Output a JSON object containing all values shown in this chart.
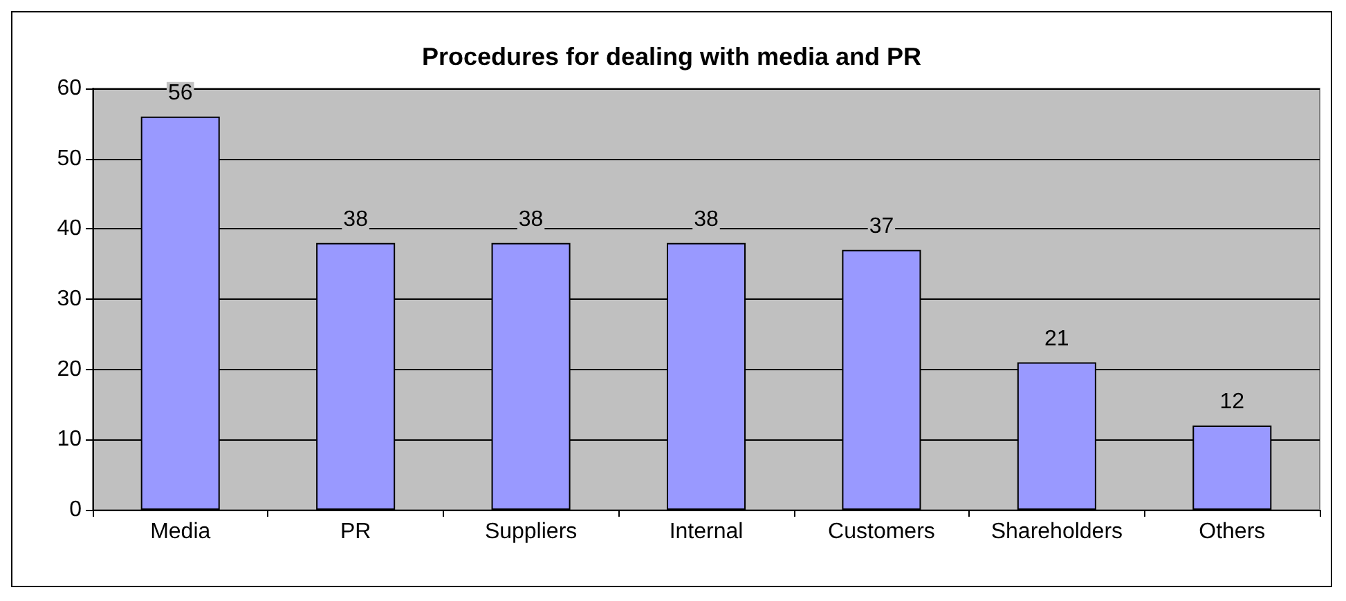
{
  "chart_data": {
    "type": "bar",
    "title": "Procedures for dealing with media and PR",
    "categories": [
      "Media",
      "PR",
      "Suppliers",
      "Internal",
      "Customers",
      "Shareholders",
      "Others"
    ],
    "values": [
      56,
      38,
      38,
      38,
      37,
      21,
      12
    ],
    "color": "#9999ff",
    "ylim": [
      0,
      60
    ],
    "yticks": [
      0,
      10,
      20,
      30,
      40,
      50,
      60
    ],
    "grid": "y",
    "data_labels": true
  }
}
